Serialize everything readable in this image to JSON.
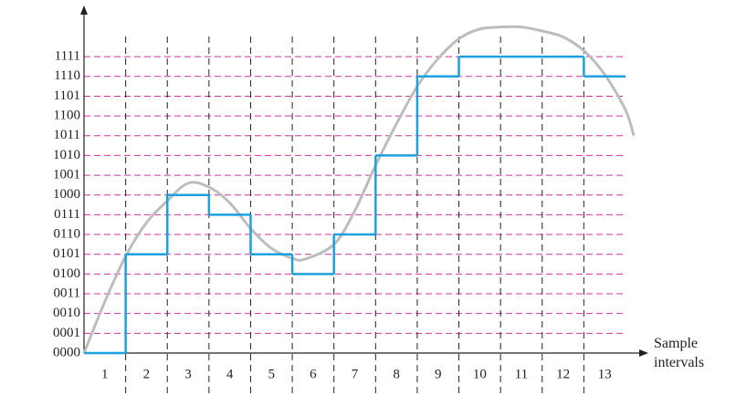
{
  "chart_data": {
    "type": "step",
    "categories": [
      "1",
      "2",
      "3",
      "4",
      "5",
      "6",
      "7",
      "8",
      "9",
      "10",
      "11",
      "12",
      "13"
    ],
    "series": [
      {
        "color": "#1ba1dd",
        "values": [
          0,
          5,
          8,
          7,
          5,
          4,
          6,
          10,
          14,
          15,
          15,
          15,
          14
        ]
      }
    ],
    "curve": {
      "color": "#bdbdbd",
      "x": [
        0,
        0.5,
        1,
        1.5,
        2,
        2.5,
        3,
        3.5,
        4,
        4.5,
        5,
        5.3,
        6,
        6.5,
        7,
        7.5,
        8,
        8.5,
        9,
        9.5,
        10,
        10.5,
        11,
        11.5,
        12,
        12.5,
        13,
        13.2
      ],
      "values": [
        0,
        2.6,
        4.9,
        6.6,
        7.7,
        8.6,
        8.4,
        7.6,
        6.3,
        5.3,
        4.8,
        4.75,
        5.5,
        7.2,
        9.5,
        11.6,
        13.5,
        14.9,
        15.9,
        16.4,
        16.5,
        16.5,
        16.3,
        16.0,
        15.3,
        14.1,
        12.3,
        11.0
      ]
    },
    "xlabel": "Sample intervals",
    "xlim": [
      0,
      13
    ],
    "ylim": [
      0,
      17.5
    ],
    "yticks": [
      {
        "value": 0,
        "label": "0000"
      },
      {
        "value": 1,
        "label": "0001"
      },
      {
        "value": 2,
        "label": "0010"
      },
      {
        "value": 3,
        "label": "0011"
      },
      {
        "value": 4,
        "label": "0100"
      },
      {
        "value": 5,
        "label": "0101"
      },
      {
        "value": 6,
        "label": "0110"
      },
      {
        "value": 7,
        "label": "0111"
      },
      {
        "value": 8,
        "label": "1000"
      },
      {
        "value": 9,
        "label": "1001"
      },
      {
        "value": 10,
        "label": "1010"
      },
      {
        "value": 11,
        "label": "1011"
      },
      {
        "value": 12,
        "label": "1100"
      },
      {
        "value": 13,
        "label": "1101"
      },
      {
        "value": 14,
        "label": "1110"
      },
      {
        "value": 15,
        "label": "1111"
      }
    ],
    "grid": true,
    "grid_color": "#d4319e"
  }
}
